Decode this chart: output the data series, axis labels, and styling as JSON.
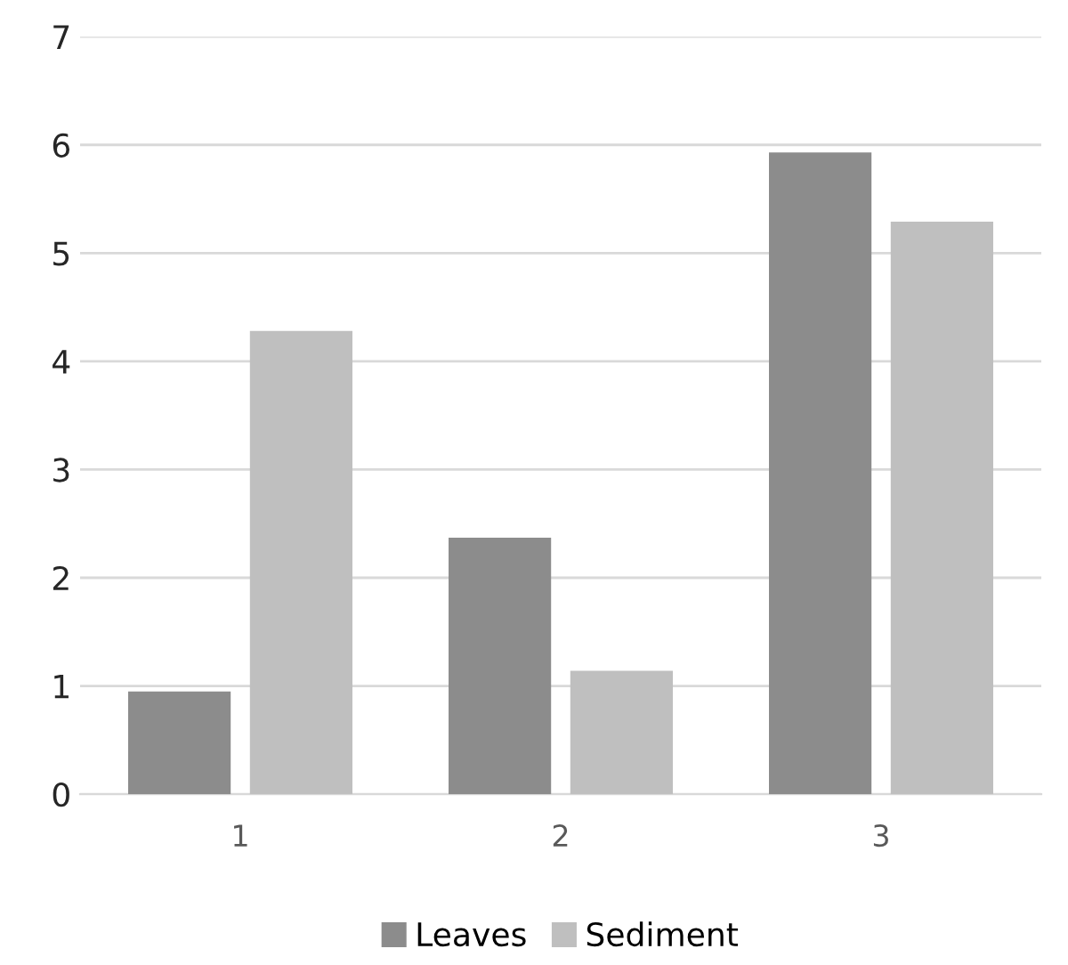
{
  "chart_data": {
    "type": "bar",
    "categories": [
      "1",
      "2",
      "3"
    ],
    "series": [
      {
        "name": "Leaves",
        "color": "#8c8c8c",
        "values": [
          0.95,
          2.37,
          5.93
        ]
      },
      {
        "name": "Sediment",
        "color": "#bfbfbf",
        "values": [
          4.28,
          1.14,
          5.29
        ]
      }
    ],
    "ylim": [
      0,
      7
    ],
    "yticks": [
      0,
      1,
      2,
      3,
      4,
      5,
      6,
      7
    ],
    "grid": "y",
    "legend": "bottom"
  }
}
